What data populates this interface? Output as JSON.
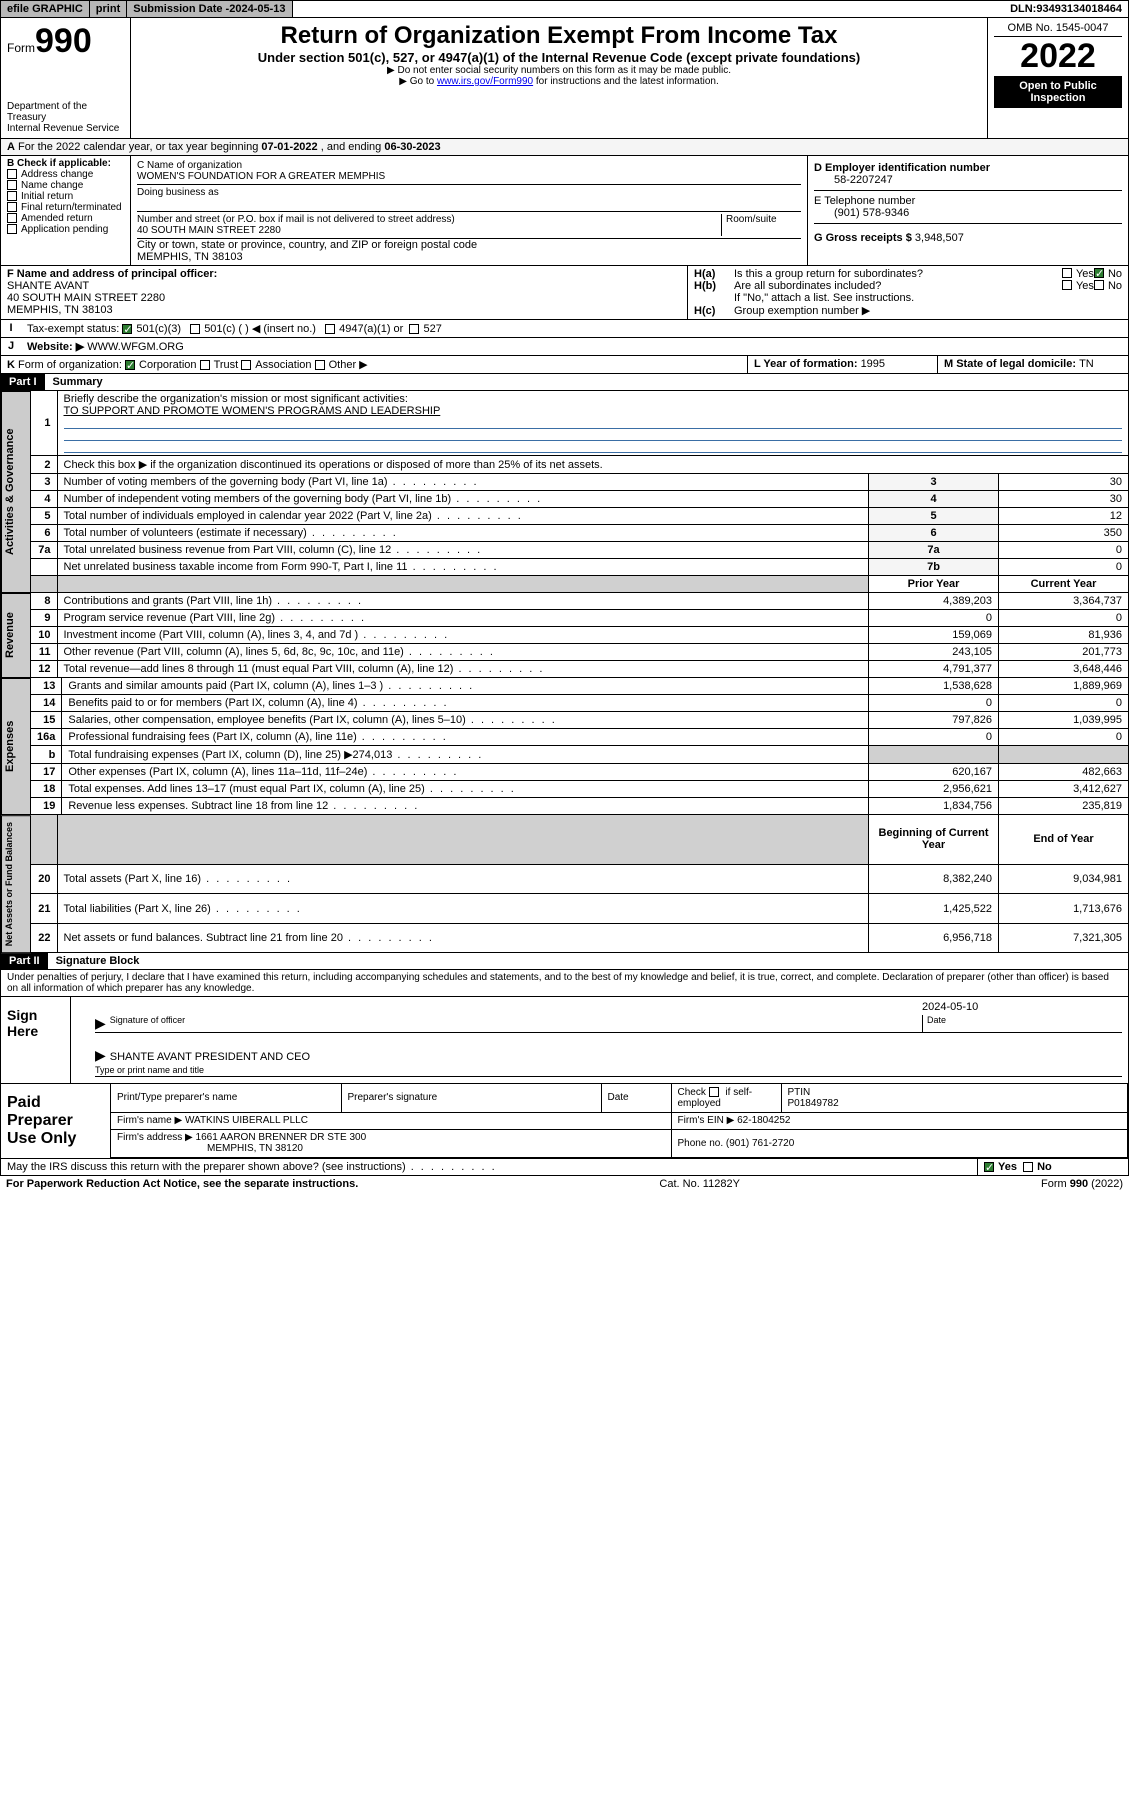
{
  "topbar": {
    "efile": "efile GRAPHIC",
    "print": "print",
    "subdate_label": "Submission Date - ",
    "subdate": "2024-05-13",
    "dln_label": "DLN: ",
    "dln": "93493134018464"
  },
  "header": {
    "form_prefix": "Form",
    "form_num": "990",
    "dept": "Department of the Treasury",
    "irs": "Internal Revenue Service",
    "title": "Return of Organization Exempt From Income Tax",
    "subtitle": "Under section 501(c), 527, or 4947(a)(1) of the Internal Revenue Code (except private foundations)",
    "note1": "Do not enter social security numbers on this form as it may be made public.",
    "note2_pre": "Go to ",
    "note2_link": "www.irs.gov/Form990",
    "note2_post": " for instructions and the latest information.",
    "omb": "OMB No. 1545-0047",
    "year": "2022",
    "open": "Open to Public Inspection"
  },
  "A": {
    "text_pre": "For the 2022 calendar year, or tax year beginning ",
    "begin": "07-01-2022",
    "text_mid": " , and ending ",
    "end": "06-30-2023"
  },
  "B": {
    "label": "B Check if applicable:",
    "items": [
      "Address change",
      "Name change",
      "Initial return",
      "Final return/terminated",
      "Amended return",
      "Application pending"
    ]
  },
  "C": {
    "name_label": "C Name of organization",
    "name": "WOMEN'S FOUNDATION FOR A GREATER MEMPHIS",
    "dba_label": "Doing business as",
    "addr_label": "Number and street (or P.O. box if mail is not delivered to street address)",
    "room_label": "Room/suite",
    "addr": "40 SOUTH MAIN STREET 2280",
    "city_label": "City or town, state or province, country, and ZIP or foreign postal code",
    "city": "MEMPHIS, TN  38103"
  },
  "D": {
    "label": "D Employer identification number",
    "val": "58-2207247"
  },
  "E": {
    "label": "E Telephone number",
    "val": "(901) 578-9346"
  },
  "G": {
    "label": "G Gross receipts $ ",
    "val": "3,948,507"
  },
  "F": {
    "label": "F  Name and address of principal officer:",
    "name": "SHANTE AVANT",
    "addr1": "40 SOUTH MAIN STREET 2280",
    "addr2": "MEMPHIS, TN  38103"
  },
  "H": {
    "a1": "H(a)",
    "a1_text": "Is this a group return for subordinates?",
    "b1": "H(b)",
    "b1_text": "Are all subordinates included?",
    "b_note": "If \"No,\" attach a list. See instructions.",
    "c1": "H(c)",
    "c1_text": "Group exemption number ▶",
    "yes": "Yes",
    "no": "No"
  },
  "I": {
    "lbl": "I",
    "text": "Tax-exempt status:",
    "opt1": "501(c)(3)",
    "opt2": "501(c) (  ) ◀ (insert no.)",
    "opt3": "4947(a)(1) or",
    "opt4": "527"
  },
  "J": {
    "lbl": "J",
    "text": "Website: ▶",
    "val": "WWW.WFGM.ORG"
  },
  "K": {
    "lbl": "K",
    "text": "Form of organization:",
    "o1": "Corporation",
    "o2": "Trust",
    "o3": "Association",
    "o4": "Other ▶"
  },
  "L": {
    "text": "L Year of formation: ",
    "val": "1995"
  },
  "M": {
    "text": "M State of legal domicile: ",
    "val": "TN"
  },
  "part1": {
    "bar": "Part I",
    "title": "Summary"
  },
  "part2": {
    "bar": "Part II",
    "title": "Signature Block"
  },
  "tabs": {
    "gov": "Activities & Governance",
    "rev": "Revenue",
    "exp": "Expenses",
    "net": "Net Assets or Fund Balances"
  },
  "s1": {
    "l1": "Briefly describe the organization's mission or most significant activities:",
    "l1v": "TO SUPPORT AND PROMOTE WOMEN'S PROGRAMS AND LEADERSHIP",
    "l2": "Check this box ▶      if the organization discontinued its operations or disposed of more than 25% of its net assets.",
    "l3": "Number of voting members of the governing body (Part VI, line 1a)",
    "l4": "Number of independent voting members of the governing body (Part VI, line 1b)",
    "l5": "Total number of individuals employed in calendar year 2022 (Part V, line 2a)",
    "l6": "Total number of volunteers (estimate if necessary)",
    "l7a": "Total unrelated business revenue from Part VIII, column (C), line 12",
    "l7b": "Net unrelated business taxable income from Form 990-T, Part I, line 11",
    "v3": "30",
    "v4": "30",
    "v5": "12",
    "v6": "350",
    "v7a": "0",
    "v7b": "0"
  },
  "cols": {
    "prior": "Prior Year",
    "current": "Current Year",
    "begin": "Beginning of Current Year",
    "end": "End of Year"
  },
  "rows": [
    {
      "n": "8",
      "t": "Contributions and grants (Part VIII, line 1h)",
      "p": "4,389,203",
      "c": "3,364,737"
    },
    {
      "n": "9",
      "t": "Program service revenue (Part VIII, line 2g)",
      "p": "0",
      "c": "0"
    },
    {
      "n": "10",
      "t": "Investment income (Part VIII, column (A), lines 3, 4, and 7d )",
      "p": "159,069",
      "c": "81,936"
    },
    {
      "n": "11",
      "t": "Other revenue (Part VIII, column (A), lines 5, 6d, 8c, 9c, 10c, and 11e)",
      "p": "243,105",
      "c": "201,773"
    },
    {
      "n": "12",
      "t": "Total revenue—add lines 8 through 11 (must equal Part VIII, column (A), line 12)",
      "p": "4,791,377",
      "c": "3,648,446"
    },
    {
      "n": "13",
      "t": "Grants and similar amounts paid (Part IX, column (A), lines 1–3 )",
      "p": "1,538,628",
      "c": "1,889,969"
    },
    {
      "n": "14",
      "t": "Benefits paid to or for members (Part IX, column (A), line 4)",
      "p": "0",
      "c": "0"
    },
    {
      "n": "15",
      "t": "Salaries, other compensation, employee benefits (Part IX, column (A), lines 5–10)",
      "p": "797,826",
      "c": "1,039,995"
    },
    {
      "n": "16a",
      "t": "Professional fundraising fees (Part IX, column (A), line 11e)",
      "p": "0",
      "c": "0"
    },
    {
      "n": "b",
      "t": "Total fundraising expenses (Part IX, column (D), line 25) ▶274,013",
      "p": "",
      "c": "",
      "shade": true
    },
    {
      "n": "17",
      "t": "Other expenses (Part IX, column (A), lines 11a–11d, 11f–24e)",
      "p": "620,167",
      "c": "482,663"
    },
    {
      "n": "18",
      "t": "Total expenses. Add lines 13–17 (must equal Part IX, column (A), line 25)",
      "p": "2,956,621",
      "c": "3,412,627"
    },
    {
      "n": "19",
      "t": "Revenue less expenses. Subtract line 18 from line 12",
      "p": "1,834,756",
      "c": "235,819"
    }
  ],
  "netrows": [
    {
      "n": "20",
      "t": "Total assets (Part X, line 16)",
      "p": "8,382,240",
      "c": "9,034,981"
    },
    {
      "n": "21",
      "t": "Total liabilities (Part X, line 26)",
      "p": "1,425,522",
      "c": "1,713,676"
    },
    {
      "n": "22",
      "t": "Net assets or fund balances. Subtract line 21 from line 20",
      "p": "6,956,718",
      "c": "7,321,305"
    }
  ],
  "penalty": "Under penalties of perjury, I declare that I have examined this return, including accompanying schedules and statements, and to the best of my knowledge and belief, it is true, correct, and complete. Declaration of preparer (other than officer) is based on all information of which preparer has any knowledge.",
  "sign": {
    "here": "Sign Here",
    "sigoff": "Signature of officer",
    "date": "Date",
    "dateval": "2024-05-10",
    "name": "SHANTE AVANT PRESIDENT AND CEO",
    "typed": "Type or print name and title"
  },
  "prep": {
    "title": "Paid Preparer Use Only",
    "c1": "Print/Type preparer's name",
    "c2": "Preparer's signature",
    "c3": "Date",
    "c4a": "Check",
    "c4b": "if self-employed",
    "c5": "PTIN",
    "ptin": "P01849782",
    "firm_label": "Firm's name   ▶ ",
    "firm": "WATKINS UIBERALL PLLC",
    "ein_label": "Firm's EIN ▶ ",
    "ein": "62-1804252",
    "addr_label": "Firm's address ▶ ",
    "addr1": "1661 AARON BRENNER DR STE 300",
    "addr2": "MEMPHIS, TN  38120",
    "phone_label": "Phone no. ",
    "phone": "(901) 761-2720"
  },
  "may": {
    "text": "May the IRS discuss this return with the preparer shown above? (see instructions)",
    "yes": "Yes",
    "no": "No"
  },
  "footer": {
    "pra": "For Paperwork Reduction Act Notice, see the separate instructions.",
    "cat": "Cat. No. 11282Y",
    "form": "Form 990 (2022)"
  }
}
